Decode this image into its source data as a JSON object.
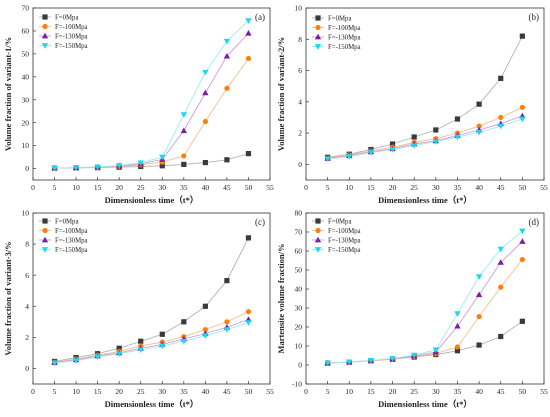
{
  "chart_data": [
    {
      "type": "line",
      "panel_label": "(a)",
      "ylabel": "Volume fraction of variant-1/%",
      "xlabel": "Dimensionless time（t*）",
      "xlim": [
        0,
        55
      ],
      "ylim": [
        -5,
        70
      ],
      "xticks": [
        0,
        5,
        10,
        15,
        20,
        25,
        30,
        35,
        40,
        45,
        50,
        55
      ],
      "yticks": [
        0,
        10,
        20,
        30,
        40,
        50,
        60,
        70
      ],
      "x": [
        5,
        10,
        15,
        20,
        25,
        30,
        35,
        40,
        45,
        50
      ],
      "series": [
        {
          "name": "F=0Mpa",
          "marker": "square",
          "color": "#3a3a3a",
          "line": "#b3b3b3",
          "values": [
            0.2,
            0.3,
            0.4,
            0.6,
            0.9,
            1.2,
            1.8,
            2.6,
            3.8,
            6.5
          ]
        },
        {
          "name": "F=-100Mpa",
          "marker": "circle",
          "color": "#ff7f0e",
          "line": "#f5c08e",
          "values": [
            0.2,
            0.3,
            0.5,
            0.9,
            1.6,
            2.8,
            5.5,
            20.5,
            35,
            48
          ]
        },
        {
          "name": "F=-130Mpa",
          "marker": "triangle",
          "color": "#7b1fa2",
          "line": "#c9a0d8",
          "values": [
            0.2,
            0.3,
            0.6,
            1.1,
            2.0,
            4.0,
            16.5,
            33,
            49,
            59
          ]
        },
        {
          "name": "F=-150Mpa",
          "marker": "triangle-down",
          "color": "#19d8f0",
          "line": "#9fe9f5",
          "values": [
            0.2,
            0.4,
            0.7,
            1.3,
            2.5,
            5.0,
            23.5,
            42,
            55.5,
            64.5
          ]
        }
      ]
    },
    {
      "type": "line",
      "panel_label": "(b)",
      "ylabel": "Volume fraction of variant-2/%",
      "xlabel": "Dimensionless time（t*）",
      "xlim": [
        0,
        55
      ],
      "ylim": [
        -1,
        10
      ],
      "xticks": [
        0,
        5,
        10,
        15,
        20,
        25,
        30,
        35,
        40,
        45,
        50,
        55
      ],
      "yticks": [
        0,
        2,
        4,
        6,
        8,
        10
      ],
      "x": [
        5,
        10,
        15,
        20,
        25,
        30,
        35,
        40,
        45,
        50
      ],
      "series": [
        {
          "name": "F=0Mpa",
          "marker": "square",
          "color": "#3a3a3a",
          "line": "#b3b3b3",
          "values": [
            0.45,
            0.65,
            0.95,
            1.3,
            1.75,
            2.2,
            2.9,
            3.85,
            5.5,
            8.2
          ]
        },
        {
          "name": "F=-100Mpa",
          "marker": "circle",
          "color": "#ff7f0e",
          "line": "#f5c08e",
          "values": [
            0.4,
            0.6,
            0.85,
            1.1,
            1.4,
            1.65,
            2.0,
            2.45,
            3.0,
            3.65
          ]
        },
        {
          "name": "F=-130Mpa",
          "marker": "triangle",
          "color": "#7b1fa2",
          "line": "#c9a0d8",
          "values": [
            0.38,
            0.55,
            0.8,
            1.0,
            1.3,
            1.5,
            1.85,
            2.2,
            2.6,
            3.1
          ]
        },
        {
          "name": "F=-150Mpa",
          "marker": "triangle-down",
          "color": "#19d8f0",
          "line": "#9fe9f5",
          "values": [
            0.35,
            0.5,
            0.75,
            0.95,
            1.2,
            1.45,
            1.75,
            2.05,
            2.45,
            2.9
          ]
        }
      ]
    },
    {
      "type": "line",
      "panel_label": "(c)",
      "ylabel": "Volume fraction of variant-3/%",
      "xlabel": "Dimensionless time（t*）",
      "xlim": [
        0,
        55
      ],
      "ylim": [
        -1,
        10
      ],
      "xticks": [
        0,
        5,
        10,
        15,
        20,
        25,
        30,
        35,
        40,
        45,
        50,
        55
      ],
      "yticks": [
        0,
        2,
        4,
        6,
        8,
        10
      ],
      "x": [
        5,
        10,
        15,
        20,
        25,
        30,
        35,
        40,
        45,
        50
      ],
      "series": [
        {
          "name": "F=0Mpa",
          "marker": "square",
          "color": "#3a3a3a",
          "line": "#b3b3b3",
          "values": [
            0.45,
            0.7,
            0.95,
            1.3,
            1.75,
            2.2,
            3.0,
            4.0,
            5.65,
            8.4
          ]
        },
        {
          "name": "F=-100Mpa",
          "marker": "circle",
          "color": "#ff7f0e",
          "line": "#f5c08e",
          "values": [
            0.4,
            0.6,
            0.85,
            1.1,
            1.45,
            1.7,
            2.05,
            2.5,
            3.0,
            3.65
          ]
        },
        {
          "name": "F=-130Mpa",
          "marker": "triangle",
          "color": "#7b1fa2",
          "line": "#c9a0d8",
          "values": [
            0.38,
            0.55,
            0.8,
            1.0,
            1.3,
            1.55,
            1.9,
            2.25,
            2.65,
            3.15
          ]
        },
        {
          "name": "F=-150Mpa",
          "marker": "triangle-down",
          "color": "#19d8f0",
          "line": "#9fe9f5",
          "values": [
            0.35,
            0.5,
            0.75,
            0.95,
            1.2,
            1.45,
            1.75,
            2.1,
            2.5,
            2.95
          ]
        }
      ]
    },
    {
      "type": "line",
      "panel_label": "(d)",
      "ylabel": "Martensite volume fraction/%",
      "xlabel": "Dimensionless time（t*）",
      "xlim": [
        0,
        55
      ],
      "ylim": [
        -10,
        80
      ],
      "xticks": [
        0,
        5,
        10,
        15,
        20,
        25,
        30,
        35,
        40,
        45,
        50,
        55
      ],
      "yticks": [
        -10,
        0,
        10,
        20,
        30,
        40,
        50,
        60,
        70,
        80
      ],
      "x": [
        5,
        10,
        15,
        20,
        25,
        30,
        35,
        40,
        45,
        50
      ],
      "series": [
        {
          "name": "F=0Mpa",
          "marker": "square",
          "color": "#3a3a3a",
          "line": "#b3b3b3",
          "values": [
            1.0,
            1.5,
            2.2,
            3.0,
            4.2,
            5.5,
            7.5,
            10.5,
            15,
            23
          ]
        },
        {
          "name": "F=-100Mpa",
          "marker": "circle",
          "color": "#ff7f0e",
          "line": "#f5c08e",
          "values": [
            1.0,
            1.5,
            2.2,
            3.1,
            4.5,
            6.0,
            9.5,
            25.5,
            41,
            55.5
          ]
        },
        {
          "name": "F=-130Mpa",
          "marker": "triangle",
          "color": "#7b1fa2",
          "line": "#c9a0d8",
          "values": [
            1.0,
            1.5,
            2.3,
            3.2,
            4.8,
            6.8,
            20.5,
            37,
            54,
            65
          ]
        },
        {
          "name": "F=-150Mpa",
          "marker": "triangle-down",
          "color": "#19d8f0",
          "line": "#9fe9f5",
          "values": [
            1.0,
            1.6,
            2.4,
            3.4,
            5.2,
            8.0,
            27,
            46.5,
            61,
            70.5
          ]
        }
      ]
    }
  ]
}
